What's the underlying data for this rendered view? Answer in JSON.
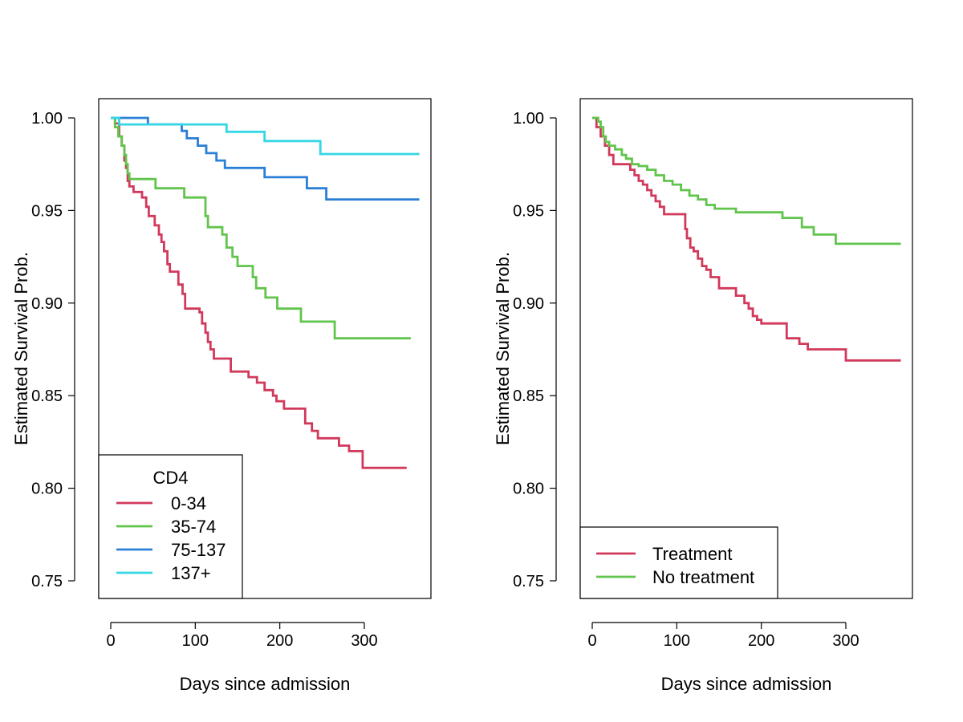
{
  "chart_data": [
    {
      "type": "line",
      "step": true,
      "title": "",
      "xlabel": "Days since admission",
      "ylabel": "Estimated Survival Prob.",
      "xlim": [
        0,
        365
      ],
      "ylim": [
        0.74,
        1.01
      ],
      "xticks": [
        "0",
        "100",
        "200",
        "300"
      ],
      "yticks": [
        "0.75",
        "0.80",
        "0.85",
        "0.90",
        "0.95",
        "1.00"
      ],
      "legend": {
        "title": "CD4",
        "position": "bottom-left"
      },
      "series": [
        {
          "name": "0-34",
          "color": "#D1395B",
          "x": [
            0,
            5,
            10,
            13,
            16,
            18,
            20,
            22,
            27,
            37,
            42,
            45,
            52,
            57,
            60,
            63,
            67,
            70,
            80,
            85,
            88,
            92,
            105,
            108,
            112,
            115,
            118,
            122,
            128,
            142,
            163,
            173,
            182,
            192,
            196,
            205,
            230,
            238,
            245,
            270,
            282,
            298,
            350
          ],
          "y": [
            1.0,
            0.997,
            0.99,
            0.985,
            0.977,
            0.973,
            0.966,
            0.963,
            0.96,
            0.957,
            0.952,
            0.947,
            0.942,
            0.937,
            0.933,
            0.928,
            0.921,
            0.917,
            0.91,
            0.905,
            0.897,
            0.897,
            0.895,
            0.889,
            0.884,
            0.879,
            0.875,
            0.87,
            0.87,
            0.863,
            0.86,
            0.857,
            0.853,
            0.85,
            0.847,
            0.843,
            0.835,
            0.831,
            0.827,
            0.823,
            0.82,
            0.811,
            0.811
          ]
        },
        {
          "name": "35-74",
          "color": "#61C44C",
          "x": [
            0,
            5,
            9,
            13,
            16,
            18,
            20,
            22,
            25,
            30,
            53,
            87,
            112,
            115,
            132,
            137,
            144,
            150,
            168,
            172,
            183,
            197,
            225,
            265,
            355
          ],
          "y": [
            1.0,
            0.995,
            0.99,
            0.985,
            0.98,
            0.975,
            0.97,
            0.967,
            0.967,
            0.967,
            0.962,
            0.957,
            0.947,
            0.941,
            0.937,
            0.93,
            0.925,
            0.92,
            0.914,
            0.908,
            0.903,
            0.897,
            0.89,
            0.881,
            0.881
          ]
        },
        {
          "name": "75-137",
          "color": "#2A7FD6",
          "x": [
            0,
            44,
            84,
            90,
            103,
            113,
            125,
            135,
            182,
            232,
            255,
            365
          ],
          "y": [
            1.0,
            0.9965,
            0.993,
            0.989,
            0.985,
            0.981,
            0.977,
            0.973,
            0.968,
            0.962,
            0.956,
            0.956
          ]
        },
        {
          "name": "137+",
          "color": "#35D6E5",
          "x": [
            0,
            10,
            137,
            182,
            248,
            365
          ],
          "y": [
            1.0,
            0.9965,
            0.9925,
            0.9875,
            0.9805,
            0.9805
          ]
        }
      ]
    },
    {
      "type": "line",
      "step": true,
      "title": "",
      "xlabel": "Days since admission",
      "ylabel": "Estimated Survival Prob.",
      "xlim": [
        0,
        365
      ],
      "ylim": [
        0.74,
        1.01
      ],
      "xticks": [
        "0",
        "100",
        "200",
        "300"
      ],
      "yticks": [
        "0.75",
        "0.80",
        "0.85",
        "0.90",
        "0.95",
        "1.00"
      ],
      "legend": {
        "title": "",
        "position": "bottom-left"
      },
      "series": [
        {
          "name": "Treatment",
          "color": "#D1395B",
          "x": [
            0,
            5,
            10,
            15,
            20,
            25,
            35,
            45,
            50,
            55,
            60,
            65,
            70,
            75,
            80,
            85,
            90,
            100,
            110,
            112,
            116,
            120,
            125,
            130,
            135,
            140,
            150,
            170,
            180,
            185,
            190,
            195,
            200,
            205,
            210,
            230,
            235,
            245,
            255,
            265,
            300,
            365
          ],
          "y": [
            1.0,
            0.995,
            0.99,
            0.985,
            0.98,
            0.975,
            0.975,
            0.972,
            0.969,
            0.966,
            0.964,
            0.961,
            0.958,
            0.955,
            0.952,
            0.948,
            0.948,
            0.948,
            0.94,
            0.935,
            0.93,
            0.928,
            0.924,
            0.92,
            0.918,
            0.914,
            0.908,
            0.904,
            0.9,
            0.897,
            0.893,
            0.891,
            0.889,
            0.889,
            0.889,
            0.881,
            0.881,
            0.878,
            0.875,
            0.875,
            0.869,
            0.869
          ]
        },
        {
          "name": "No treatment",
          "color": "#61C44C",
          "x": [
            0,
            7,
            10,
            13,
            16,
            20,
            27,
            35,
            40,
            47,
            55,
            65,
            75,
            85,
            95,
            105,
            115,
            125,
            135,
            145,
            170,
            210,
            225,
            248,
            262,
            288,
            365
          ],
          "y": [
            1.0,
            0.998,
            0.995,
            0.99,
            0.987,
            0.985,
            0.983,
            0.98,
            0.978,
            0.975,
            0.974,
            0.972,
            0.969,
            0.966,
            0.964,
            0.961,
            0.958,
            0.956,
            0.953,
            0.951,
            0.949,
            0.949,
            0.946,
            0.941,
            0.937,
            0.932,
            0.932
          ]
        }
      ]
    }
  ]
}
